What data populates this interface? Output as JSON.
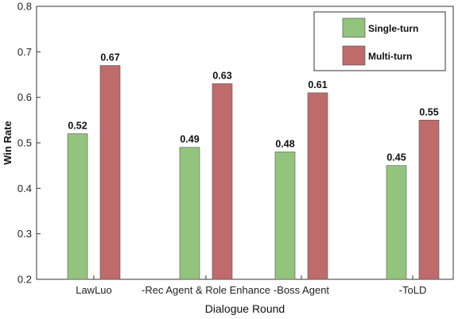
{
  "chart_data": {
    "type": "bar",
    "title": "",
    "xlabel": "Dialogue Round",
    "ylabel": "Win Rate",
    "ylim": [
      0.2,
      0.8
    ],
    "yticks": [
      "0.2",
      "0.3",
      "0.4",
      "0.5",
      "0.6",
      "0.7",
      "0.8"
    ],
    "categories": [
      "LawLuo",
      "-Rec Agent & Role Enhance",
      "-Boss Agent",
      "-ToLD"
    ],
    "series": [
      {
        "name": "Single-turn",
        "values": [
          0.52,
          0.49,
          0.48,
          0.45
        ],
        "labels": [
          "0.52",
          "0.49",
          "0.48",
          "0.45"
        ],
        "color": "#93c47d"
      },
      {
        "name": "Multi-turn",
        "values": [
          0.67,
          0.63,
          0.61,
          0.55
        ],
        "labels": [
          "0.67",
          "0.63",
          "0.61",
          "0.55"
        ],
        "color": "#c06b6b"
      }
    ],
    "legend": "top-right",
    "grid": false
  }
}
